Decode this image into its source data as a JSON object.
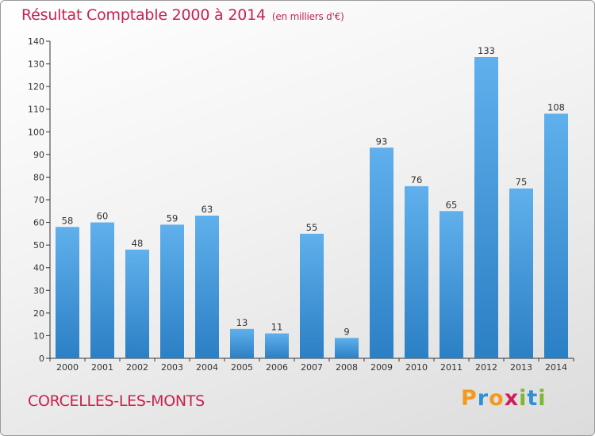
{
  "title": "Résultat Comptable 2000 à 2014",
  "subtitle": "(en milliers d'€)",
  "commune": "CORCELLES-LES-MONTS",
  "logo": {
    "letters": [
      "P",
      "r",
      "o",
      "x",
      "i",
      "t",
      "i"
    ],
    "colors": [
      "#f29a1d",
      "#2f8fd8",
      "#f29a1d",
      "#cf1f5a",
      "#7cb82f",
      "#2f8fd8",
      "#7cb82f"
    ]
  },
  "colors": {
    "accent": "#c8224f",
    "bar_light": "#5fb0ec",
    "bar_dark": "#2b7fc4"
  },
  "chart_data": {
    "type": "bar",
    "title": "Résultat Comptable 2000 à 2014",
    "xlabel": "",
    "ylabel": "",
    "categories": [
      "2000",
      "2001",
      "2002",
      "2003",
      "2004",
      "2005",
      "2006",
      "2007",
      "2008",
      "2009",
      "2010",
      "2011",
      "2012",
      "2013",
      "2014"
    ],
    "values": [
      58,
      60,
      48,
      59,
      63,
      13,
      11,
      55,
      9,
      93,
      76,
      65,
      133,
      75,
      108
    ],
    "ylim": [
      0,
      140
    ],
    "yticks": [
      0,
      10,
      20,
      30,
      40,
      50,
      60,
      70,
      80,
      90,
      100,
      110,
      120,
      130,
      140
    ],
    "grid": false
  }
}
